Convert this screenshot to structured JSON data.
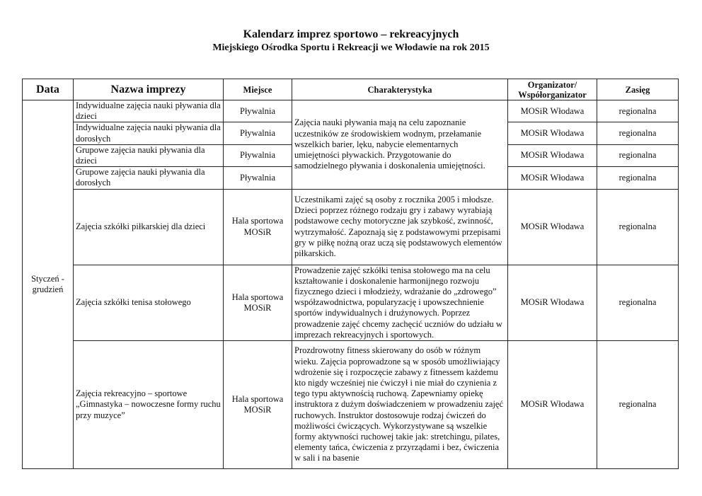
{
  "title": "Kalendarz imprez sportowo – rekreacyjnych",
  "subtitle": "Miejskiego Ośrodka Sportu i Rekreacji we Włodawie na rok 2015",
  "columns": [
    "Data",
    "Nazwa imprezy",
    "Miejsce",
    "Charakterystyka",
    "Organizator/ Współorganizator",
    "Zasięg"
  ],
  "date": "Styczeń - grudzień",
  "swim_description": "Zajęcia nauki pływania mają na celu zapoznanie uczestników  ze środowiskiem wodnym, przełamanie wszelkich barier, lęku, nabycie elementarnych umiejętności pływackich. Przygotowanie do samodzielnego pływania i doskonalenia umiejętności.",
  "rows": [
    {
      "name": "Indywidualne zajęcia nauki pływania dla dzieci",
      "place": "Pływalnia",
      "organizer": "MOSiR Włodawa",
      "scope": "regionalna"
    },
    {
      "name": "Indywidualne zajęcia nauki pływania dla dorosłych",
      "place": "Pływalnia",
      "organizer": "MOSiR Włodawa",
      "scope": "regionalna"
    },
    {
      "name": "Grupowe zajęcia nauki pływania dla dzieci",
      "place": "Pływalnia",
      "organizer": "MOSiR Włodawa",
      "scope": "regionalna"
    },
    {
      "name": "Grupowe zajęcia nauki pływania dla dorosłych",
      "place": "Pływalnia",
      "organizer": "MOSiR Włodawa",
      "scope": "regionalna"
    },
    {
      "name": "Zajęcia szkółki piłkarskiej dla dzieci",
      "place": "Hala sportowa MOSiR",
      "description": "Uczestnikami zajęć są osoby z rocznika 2005 i młodsze. Dzieci poprzez różnego rodzaju gry i zabawy wyrabiają podstawowe cechy motoryczne jak szybkość, zwinność, wytrzymałość. Zapoznają się z podstawowymi przepisami gry w piłkę nożną oraz uczą się podstawowych elementów piłkarskich.",
      "organizer": "MOSiR Włodawa",
      "scope": "regionalna"
    },
    {
      "name": "Zajęcia szkółki tenisa stołowego",
      "place": "Hala sportowa MOSiR",
      "description": "Prowadzenie zajęć szkółki tenisa stołowego ma na celu kształtowanie i doskonalenie harmonijnego rozwoju fizycznego dzieci i młodzieży, wdrażanie do „zdrowego” współzawodnictwa, popularyzację i upowszechnienie sportów indywidualnych i drużynowych. Poprzez prowadzenie zajęć chcemy zachęcić uczniów do udziału w imprezach rekreacyjnych i sportowych.",
      "organizer": "MOSiR Włodawa",
      "scope": "regionalna"
    },
    {
      "name": "Zajęcia rekreacyjno – sportowe „Gimnastyka – nowoczesne formy ruchu przy muzyce”",
      "place": "Hala sportowa MOSiR",
      "description": "Prozdrowotny fitness skierowany do osób w różnym wieku. Zajęcia poprowadzone są w sposób umożliwiający wdrożenie się i rozpoczęcie zabawy z fitnessem każdemu kto nigdy wcześniej nie ćwiczył i nie miał do czynienia z tego typu aktywnością ruchową. Zapewniamy opiekę instruktora z dużym doświadczeniem w prowadzeniu zajęć ruchowych. Instruktor dostosowuje rodzaj ćwiczeń do możliwości ćwiczących. Wykorzystywane są wszelkie formy aktywności ruchowej takie jak: stretchingu, pilates, elementy tańca, ćwiczenia z przyrządami i bez, ćwiczenia w sali i na basenie",
      "organizer": "MOSiR Włodawa",
      "scope": "regionalna"
    }
  ]
}
